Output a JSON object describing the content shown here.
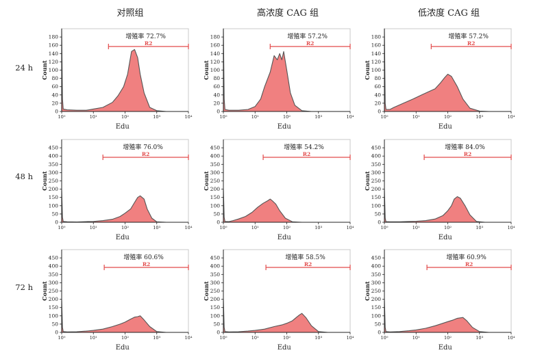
{
  "columns": [
    "对照组",
    "高浓度 CAG 组",
    "低浓度 CAG 组"
  ],
  "rows": [
    "24 h",
    "48 h",
    "72 h"
  ],
  "colors": {
    "fill": "#f08080",
    "stroke": "#555555",
    "gate": "#e24a4a",
    "axis": "#222222",
    "frame": "#c8c8c8"
  },
  "chart_data": [
    {
      "type": "area",
      "row": "24 h",
      "column": "对照组",
      "x_label": "Edu",
      "y_label": "Count",
      "x_scale": "log",
      "xlim": [
        1,
        10000
      ],
      "ylim": [
        0,
        200
      ],
      "x_ticks": [
        "10⁰",
        "10¹",
        "10²",
        "10³",
        "10⁴"
      ],
      "y_ticks": [
        0,
        20,
        40,
        60,
        80,
        100,
        120,
        140,
        160,
        180
      ],
      "gate": {
        "label": "R2",
        "x_range": [
          30,
          10000
        ]
      },
      "annotation": "增殖率 72.7%",
      "x": [
        1,
        1.06,
        1.12,
        1.5,
        3,
        6,
        10,
        20,
        40,
        60,
        90,
        120,
        160,
        200,
        250,
        300,
        400,
        600,
        1000,
        2000
      ],
      "y": [
        200,
        30,
        6,
        4,
        3,
        3,
        6,
        10,
        22,
        38,
        60,
        90,
        145,
        150,
        130,
        90,
        45,
        10,
        2,
        0
      ]
    },
    {
      "type": "area",
      "row": "24 h",
      "column": "高浓度 CAG 组",
      "x_label": "Edu",
      "y_label": "Count",
      "x_scale": "log",
      "xlim": [
        1,
        10000
      ],
      "ylim": [
        0,
        200
      ],
      "x_ticks": [
        "10⁰",
        "10¹",
        "10²",
        "10³",
        "10⁴"
      ],
      "y_ticks": [
        0,
        20,
        40,
        60,
        80,
        100,
        120,
        140,
        160,
        180
      ],
      "gate": {
        "label": "R2",
        "x_range": [
          30,
          10000
        ]
      },
      "annotation": "增殖率 57.2%",
      "x": [
        1,
        1.06,
        1.12,
        1.5,
        3,
        6,
        10,
        15,
        20,
        30,
        40,
        50,
        60,
        70,
        80,
        100,
        130,
        180,
        300,
        600
      ],
      "y": [
        200,
        30,
        5,
        3,
        3,
        5,
        12,
        30,
        60,
        95,
        135,
        125,
        140,
        125,
        145,
        100,
        45,
        15,
        2,
        0
      ]
    },
    {
      "type": "area",
      "row": "24 h",
      "column": "低浓度 CAG 组",
      "x_label": "Edu",
      "y_label": "Count",
      "x_scale": "log",
      "xlim": [
        1,
        10000
      ],
      "ylim": [
        0,
        200
      ],
      "x_ticks": [
        "10⁰",
        "10¹",
        "10²",
        "10³",
        "10⁴"
      ],
      "y_ticks": [
        0,
        20,
        40,
        60,
        80,
        100,
        120,
        140,
        160,
        180
      ],
      "gate": {
        "label": "R2",
        "x_range": [
          30,
          10000
        ]
      },
      "annotation": "增殖率 57.2%",
      "x": [
        1,
        1.06,
        1.12,
        1.5,
        2,
        4,
        8,
        15,
        25,
        40,
        60,
        80,
        100,
        130,
        200,
        300,
        500,
        1000,
        2000
      ],
      "y": [
        200,
        20,
        5,
        5,
        10,
        20,
        30,
        40,
        48,
        55,
        70,
        82,
        90,
        85,
        60,
        30,
        8,
        1,
        0
      ]
    },
    {
      "type": "area",
      "row": "48 h",
      "column": "对照组",
      "x_label": "Edu",
      "y_label": "Count",
      "x_scale": "log",
      "xlim": [
        1,
        10000
      ],
      "ylim": [
        0,
        500
      ],
      "x_ticks": [
        "10⁰",
        "10¹",
        "10²",
        "10³",
        "10⁴"
      ],
      "y_ticks": [
        0,
        50,
        100,
        150,
        200,
        250,
        300,
        350,
        400,
        450
      ],
      "gate": {
        "label": "R2",
        "x_range": [
          20,
          10000
        ]
      },
      "annotation": "增殖率 76.0%",
      "x": [
        1,
        1.06,
        1.12,
        1.5,
        3,
        6,
        10,
        20,
        40,
        70,
        100,
        150,
        200,
        250,
        300,
        400,
        500,
        700,
        1000,
        2000
      ],
      "y": [
        200,
        30,
        5,
        3,
        2,
        4,
        5,
        10,
        18,
        35,
        55,
        80,
        120,
        150,
        160,
        140,
        80,
        25,
        3,
        0
      ]
    },
    {
      "type": "area",
      "row": "48 h",
      "column": "高浓度 CAG 组",
      "x_label": "Edu",
      "y_label": "Count",
      "x_scale": "log",
      "xlim": [
        1,
        10000
      ],
      "ylim": [
        0,
        500
      ],
      "x_ticks": [
        "10⁰",
        "10¹",
        "10²",
        "10³",
        "10⁴"
      ],
      "y_ticks": [
        0,
        50,
        100,
        150,
        200,
        250,
        300,
        350,
        400,
        450
      ],
      "gate": {
        "label": "R2",
        "x_range": [
          18,
          10000
        ]
      },
      "annotation": "增殖率 54.2%",
      "x": [
        1,
        1.06,
        1.12,
        1.5,
        2,
        3,
        5,
        8,
        12,
        18,
        25,
        30,
        35,
        45,
        60,
        90,
        150,
        300
      ],
      "y": [
        200,
        30,
        5,
        4,
        10,
        20,
        35,
        60,
        90,
        115,
        130,
        140,
        130,
        110,
        70,
        25,
        3,
        0
      ]
    },
    {
      "type": "area",
      "row": "48 h",
      "column": "低浓度 CAG 组",
      "x_label": "Edu",
      "y_label": "Count",
      "x_scale": "log",
      "xlim": [
        1,
        10000
      ],
      "ylim": [
        0,
        500
      ],
      "x_ticks": [
        "10⁰",
        "10¹",
        "10²",
        "10³",
        "10⁴"
      ],
      "y_ticks": [
        0,
        50,
        100,
        150,
        200,
        250,
        300,
        350,
        400,
        450
      ],
      "gate": {
        "label": "R2",
        "x_range": [
          18,
          10000
        ]
      },
      "annotation": "增殖率 84.0%",
      "x": [
        1,
        1.06,
        1.12,
        1.5,
        3,
        6,
        10,
        20,
        40,
        70,
        100,
        130,
        160,
        200,
        250,
        350,
        500,
        800,
        1500
      ],
      "y": [
        200,
        25,
        4,
        3,
        3,
        5,
        6,
        10,
        20,
        40,
        70,
        100,
        140,
        155,
        145,
        100,
        45,
        5,
        0
      ]
    },
    {
      "type": "area",
      "row": "72 h",
      "column": "对照组",
      "x_label": "Edu",
      "y_label": "Count",
      "x_scale": "log",
      "xlim": [
        1,
        10000
      ],
      "ylim": [
        0,
        500
      ],
      "x_ticks": [
        "10⁰",
        "10¹",
        "10²",
        "10³",
        "10⁴"
      ],
      "y_ticks": [
        0,
        50,
        100,
        150,
        200,
        250,
        300,
        350,
        400,
        450
      ],
      "gate": {
        "label": "R2",
        "x_range": [
          22,
          10000
        ]
      },
      "annotation": "增殖率 60.6%",
      "x": [
        1,
        1.06,
        1.12,
        1.5,
        3,
        6,
        10,
        20,
        40,
        70,
        100,
        150,
        200,
        250,
        300,
        400,
        600,
        1000,
        2000
      ],
      "y": [
        200,
        30,
        5,
        3,
        4,
        8,
        12,
        20,
        35,
        50,
        62,
        80,
        92,
        95,
        100,
        75,
        35,
        5,
        0
      ]
    },
    {
      "type": "area",
      "row": "72 h",
      "column": "高浓度 CAG 组",
      "x_label": "Edu",
      "y_label": "Count",
      "x_scale": "log",
      "xlim": [
        1,
        10000
      ],
      "ylim": [
        0,
        500
      ],
      "x_ticks": [
        "10⁰",
        "10¹",
        "10²",
        "10³",
        "10⁴"
      ],
      "y_ticks": [
        0,
        50,
        100,
        150,
        200,
        250,
        300,
        350,
        400,
        450
      ],
      "gate": {
        "label": "R2",
        "x_range": [
          22,
          10000
        ]
      },
      "annotation": "增殖率 58.5%",
      "x": [
        1,
        1.06,
        1.12,
        1.5,
        3,
        6,
        10,
        20,
        40,
        70,
        100,
        150,
        200,
        250,
        300,
        400,
        600,
        1000,
        2000
      ],
      "y": [
        200,
        30,
        5,
        3,
        4,
        8,
        12,
        20,
        35,
        45,
        55,
        70,
        90,
        105,
        115,
        90,
        40,
        5,
        0
      ]
    },
    {
      "type": "area",
      "row": "72 h",
      "column": "低浓度 CAG 组",
      "x_label": "Edu",
      "y_label": "Count",
      "x_scale": "log",
      "xlim": [
        1,
        10000
      ],
      "ylim": [
        0,
        500
      ],
      "x_ticks": [
        "10⁰",
        "10¹",
        "10²",
        "10³",
        "10⁴"
      ],
      "y_ticks": [
        0,
        50,
        100,
        150,
        200,
        250,
        300,
        350,
        400,
        450
      ],
      "gate": {
        "label": "R2",
        "x_range": [
          22,
          10000
        ]
      },
      "annotation": "增殖率 60.9%",
      "x": [
        1,
        1.06,
        1.12,
        1.5,
        3,
        6,
        10,
        20,
        40,
        70,
        100,
        150,
        200,
        300,
        400,
        600,
        1000,
        2000
      ],
      "y": [
        200,
        30,
        5,
        3,
        5,
        10,
        15,
        25,
        40,
        55,
        65,
        75,
        85,
        90,
        70,
        30,
        5,
        0
      ]
    }
  ]
}
